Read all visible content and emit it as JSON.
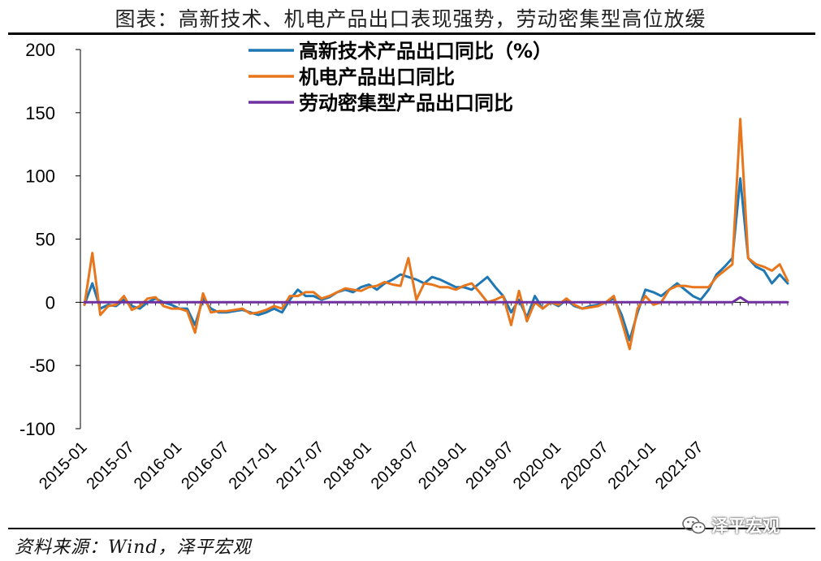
{
  "page": {
    "title": "图表：高新技术、机电产品出口表现强势，劳动密集型高位放缓",
    "source": "资料来源：Wind，泽平宏观",
    "watermark": "泽平宏观"
  },
  "chart_data": {
    "type": "line",
    "title": "图表：高新技术、机电产品出口表现强势，劳动密集型高位放缓",
    "xlabel": "",
    "ylabel": "",
    "ylim": [
      -100,
      200
    ],
    "yticks": [
      "200",
      "150",
      "100",
      "50",
      "0",
      "-50",
      "-100"
    ],
    "ytick_values": [
      200,
      150,
      100,
      50,
      0,
      -50,
      -100
    ],
    "x_tick_labels": [
      "2015-01",
      "2015-07",
      "2016-01",
      "2016-07",
      "2017-01",
      "2017-07",
      "2018-01",
      "2018-07",
      "2019-01",
      "2019-07",
      "2020-01",
      "2020-07",
      "2021-01",
      "2021-07"
    ],
    "x_start": "2015-01",
    "legend_position": "top-center",
    "colors": {
      "high_tech": "#1f77b4",
      "mech_elec": "#e8761c",
      "labor": "#7030a0"
    },
    "series": [
      {
        "name": "高新技术产品出口同比（%）",
        "key": "high_tech",
        "values": [
          -2,
          15,
          -5,
          -2,
          -3,
          2,
          -3,
          -5,
          0,
          3,
          0,
          -2,
          -5,
          -5,
          -18,
          3,
          -5,
          -8,
          -8,
          -7,
          -6,
          -8,
          -10,
          -8,
          -5,
          -8,
          2,
          10,
          5,
          5,
          2,
          4,
          8,
          10,
          8,
          12,
          14,
          10,
          15,
          18,
          22,
          20,
          18,
          15,
          20,
          18,
          15,
          12,
          12,
          10,
          15,
          20,
          12,
          5,
          -8,
          2,
          -12,
          5,
          -5,
          0,
          -3,
          2,
          -3,
          -5,
          -3,
          -2,
          0,
          3,
          -10,
          -30,
          -8,
          10,
          8,
          5,
          10,
          15,
          10,
          5,
          2,
          10,
          22,
          28,
          35,
          98,
          35,
          28,
          25,
          15,
          22,
          15
        ]
      },
      {
        "name": "机电产品出口同比",
        "key": "mech_elec",
        "values": [
          -2,
          39,
          -10,
          -3,
          -2,
          5,
          -6,
          -3,
          3,
          4,
          -3,
          -5,
          -5,
          -7,
          -24,
          7,
          -8,
          -7,
          -7,
          -6,
          -5,
          -9,
          -8,
          -6,
          -3,
          -5,
          5,
          5,
          8,
          8,
          3,
          5,
          8,
          11,
          10,
          9,
          12,
          13,
          16,
          14,
          13,
          35,
          2,
          15,
          14,
          12,
          12,
          10,
          13,
          15,
          8,
          0,
          2,
          5,
          -18,
          9,
          -15,
          0,
          -5,
          0,
          -2,
          3,
          -2,
          -5,
          -4,
          -3,
          0,
          5,
          -15,
          -37,
          -5,
          5,
          -2,
          0,
          10,
          13,
          13,
          12,
          12,
          12,
          20,
          25,
          30,
          145,
          35,
          30,
          28,
          25,
          30,
          17
        ]
      },
      {
        "name": "劳动密集型产品出口同比",
        "key": "labor",
        "values": [
          0,
          0,
          0,
          0,
          0,
          0,
          0,
          0,
          0,
          0,
          0,
          0,
          0,
          0,
          0,
          0,
          0,
          0,
          0,
          0,
          0,
          0,
          0,
          0,
          0,
          0,
          0,
          0,
          0,
          0,
          0,
          0,
          0,
          0,
          0,
          0,
          0,
          0,
          0,
          0,
          0,
          0,
          0,
          0,
          0,
          0,
          0,
          0,
          0,
          0,
          0,
          0,
          0,
          0,
          0,
          0,
          0,
          0,
          0,
          0,
          0,
          0,
          0,
          0,
          0,
          0,
          0,
          0,
          0,
          0,
          0,
          0,
          0,
          0,
          0,
          0,
          0,
          0,
          0,
          0,
          0,
          0,
          0,
          4,
          0,
          0,
          0,
          0,
          0,
          0
        ]
      }
    ]
  }
}
